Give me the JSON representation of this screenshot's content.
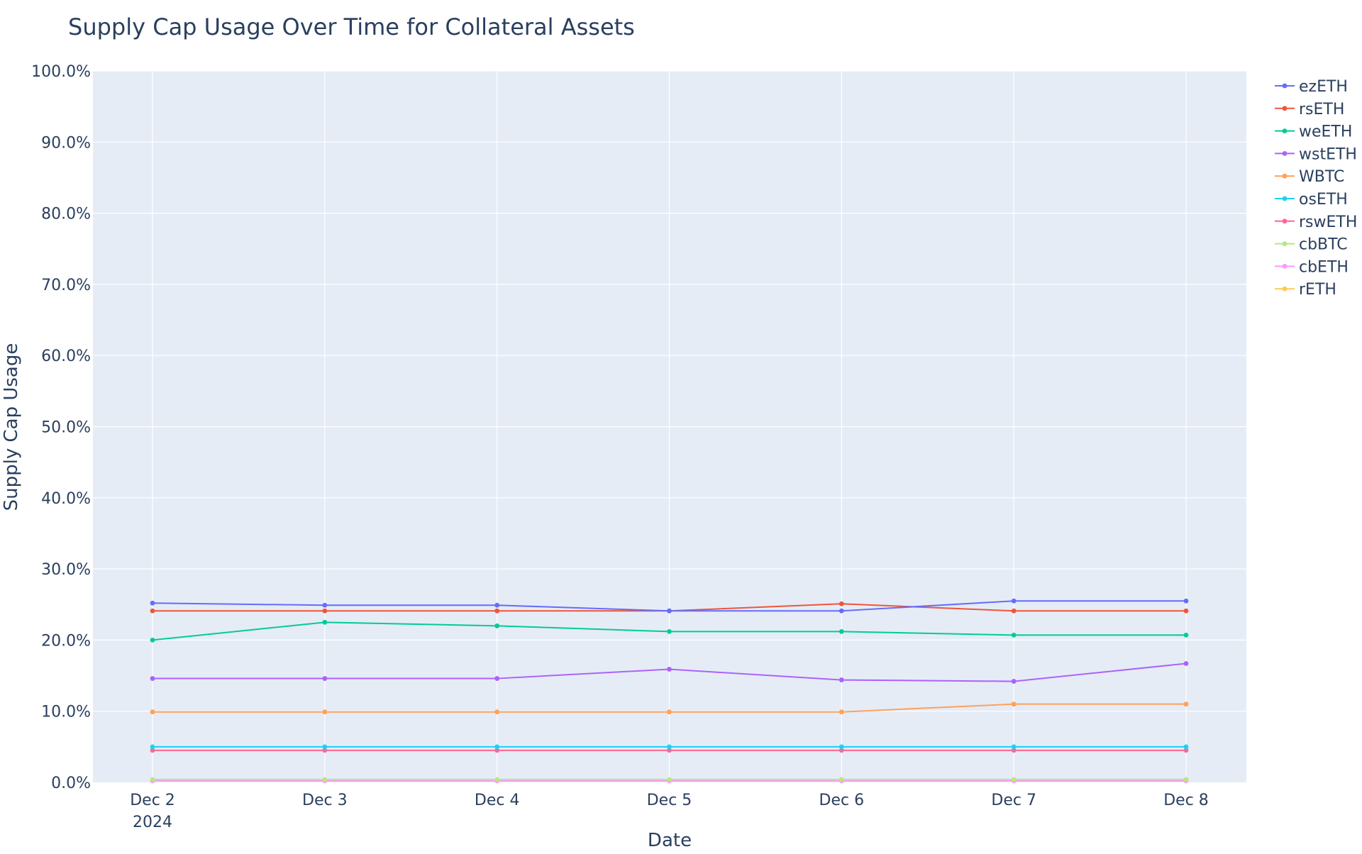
{
  "chart_data": {
    "type": "line",
    "title": "Supply Cap Usage Over Time for Collateral Assets",
    "xlabel": "Date",
    "ylabel": "Supply Cap Usage",
    "x": [
      "2024-12-02",
      "2024-12-03",
      "2024-12-04",
      "2024-12-05",
      "2024-12-06",
      "2024-12-07",
      "2024-12-08"
    ],
    "x_tick_labels": [
      "Dec 2",
      "Dec 3",
      "Dec 4",
      "Dec 5",
      "Dec 6",
      "Dec 7",
      "Dec 8"
    ],
    "x_tick_sublabel": "2024",
    "ylim": [
      0,
      100
    ],
    "y_ticks": [
      0,
      10,
      20,
      30,
      40,
      50,
      60,
      70,
      80,
      90,
      100
    ],
    "y_tick_labels": [
      "0.0%",
      "10.0%",
      "20.0%",
      "30.0%",
      "40.0%",
      "50.0%",
      "60.0%",
      "70.0%",
      "80.0%",
      "90.0%",
      "100.0%"
    ],
    "y_unit": "percent",
    "grid": true,
    "legend_position": "right",
    "plot_background": "#e5ecf6",
    "series": [
      {
        "name": "ezETH",
        "color": "#636efa",
        "values": [
          25.2,
          24.9,
          24.9,
          24.1,
          24.1,
          25.5,
          25.5
        ]
      },
      {
        "name": "rsETH",
        "color": "#ef553b",
        "values": [
          24.1,
          24.1,
          24.1,
          24.1,
          25.1,
          24.1,
          24.1
        ]
      },
      {
        "name": "weETH",
        "color": "#00cc96",
        "values": [
          20.0,
          22.5,
          22.0,
          21.2,
          21.2,
          20.7,
          20.7
        ]
      },
      {
        "name": "wstETH",
        "color": "#ab63fa",
        "values": [
          14.6,
          14.6,
          14.6,
          15.9,
          14.4,
          14.2,
          16.7
        ]
      },
      {
        "name": "WBTC",
        "color": "#ffa15a",
        "values": [
          9.9,
          9.9,
          9.9,
          9.9,
          9.9,
          11.0,
          11.0
        ]
      },
      {
        "name": "osETH",
        "color": "#19d3f3",
        "values": [
          5.0,
          5.0,
          5.0,
          5.0,
          5.0,
          5.0,
          5.0
        ]
      },
      {
        "name": "rswETH",
        "color": "#ff6692",
        "values": [
          4.5,
          4.5,
          4.5,
          4.5,
          4.5,
          4.5,
          4.5
        ]
      },
      {
        "name": "cbBTC",
        "color": "#b6e880",
        "values": [
          0.4,
          0.4,
          0.4,
          0.4,
          0.4,
          0.4,
          0.4
        ]
      },
      {
        "name": "cbETH",
        "color": "#ff97ff",
        "values": [
          0.2,
          0.2,
          0.2,
          0.2,
          0.2,
          0.2,
          0.2
        ]
      },
      {
        "name": "rETH",
        "color": "#fecb52",
        "values": [
          0.3,
          0.3,
          0.3,
          0.3,
          0.3,
          0.3,
          0.3
        ]
      }
    ]
  }
}
